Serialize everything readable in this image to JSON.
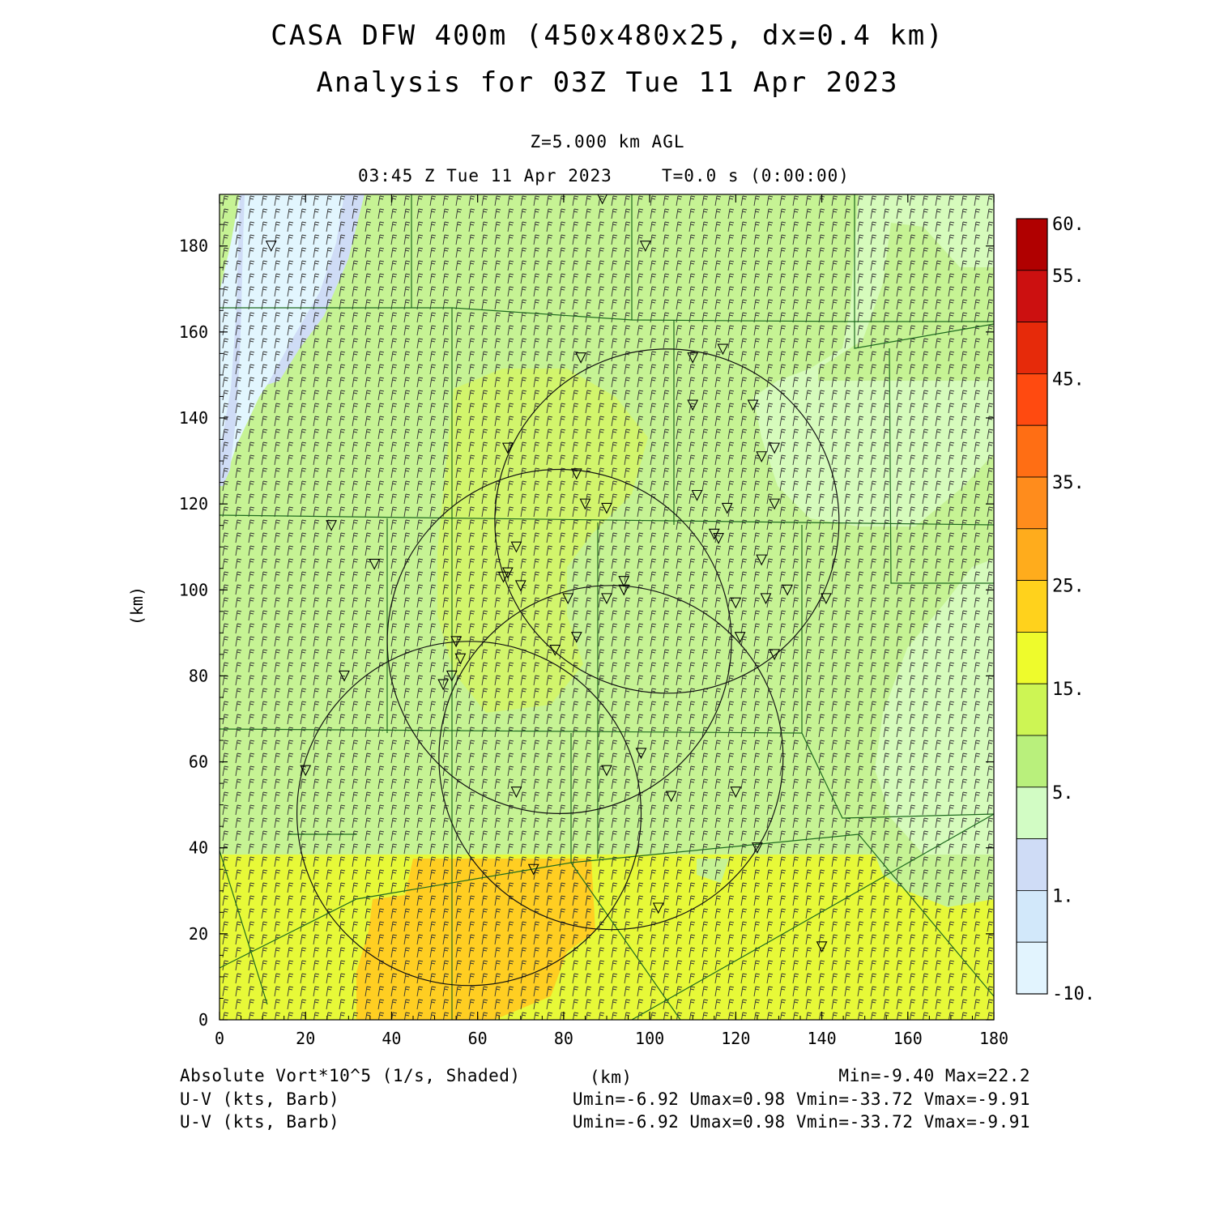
{
  "header": {
    "title_line1": "CASA DFW 400m (450x480x25, dx=0.4 km)",
    "title_line2": "Analysis for 03Z Tue 11 Apr 2023",
    "level": "Z=5.000 km AGL",
    "valid_time": "03:45 Z Tue 11 Apr 2023",
    "elapsed": "T=0.0 s (0:00:00)"
  },
  "axes": {
    "x_ticks": [
      "0",
      "20",
      "40",
      "60",
      "80",
      "100",
      "120",
      "140",
      "160",
      "180"
    ],
    "y_ticks": [
      "0",
      "20",
      "40",
      "60",
      "80",
      "100",
      "120",
      "140",
      "160",
      "180"
    ],
    "x_label": "(km)",
    "y_label": "(km)",
    "x_range_km": [
      0,
      180
    ],
    "y_range_km": [
      0,
      192
    ]
  },
  "colorbar": {
    "labels": [
      "60.",
      "55.",
      "45.",
      "35.",
      "25.",
      "15.",
      "5.",
      "1.",
      "-10."
    ],
    "colors": [
      "#b00000",
      "#cc1010",
      "#e62a0a",
      "#ff4a10",
      "#ff6e14",
      "#ff8c1c",
      "#ffac1c",
      "#ffd21c",
      "#eefb2c",
      "#cdf554",
      "#b9f07c",
      "#d2fcc4",
      "#cfdcf6",
      "#d2e8fa",
      "#e2f4fe"
    ]
  },
  "field_colors": {
    "background": "#c6f394",
    "light_green": "#d6fbbc",
    "pale_blue": "#e2f6fe",
    "blue": "#cfdcf6",
    "yellow_green": "#d2f56c",
    "yellow": "#e7f938",
    "orange": "#ffce22",
    "contour": "#1e6a1e"
  },
  "footer": {
    "shaded_label": "Absolute Vort*10^5 (1/s, Shaded)",
    "unit_label": "(km)",
    "minmax": "Min=-9.40 Max=22.2",
    "barb_label_1": "U-V (kts, Barb)",
    "barb_stats_1": "Umin=-6.92 Umax=0.98 Vmin=-33.72 Vmax=-9.91",
    "barb_label_2": "U-V (kts, Barb)",
    "barb_stats_2": "Umin=-6.92 Umax=0.98 Vmin=-33.72 Vmax=-9.91"
  },
  "radars_km": [
    {
      "x": 104,
      "y": 116,
      "r": 40
    },
    {
      "x": 79,
      "y": 88,
      "r": 40
    },
    {
      "x": 91,
      "y": 61,
      "r": 40
    },
    {
      "x": 58,
      "y": 48,
      "r": 40
    }
  ],
  "stations_km": [
    [
      12,
      180
    ],
    [
      89,
      191
    ],
    [
      99,
      180
    ],
    [
      26,
      115
    ],
    [
      36,
      106
    ],
    [
      29,
      80
    ],
    [
      20,
      58
    ],
    [
      84,
      154
    ],
    [
      110,
      154
    ],
    [
      117,
      156
    ],
    [
      110,
      143
    ],
    [
      124,
      143
    ],
    [
      67,
      133
    ],
    [
      126,
      131
    ],
    [
      129,
      133
    ],
    [
      83,
      127
    ],
    [
      85,
      120
    ],
    [
      90,
      119
    ],
    [
      111,
      122
    ],
    [
      118,
      119
    ],
    [
      129,
      120
    ],
    [
      69,
      110
    ],
    [
      115,
      113
    ],
    [
      116,
      112
    ],
    [
      126,
      107
    ],
    [
      67,
      104
    ],
    [
      66,
      103
    ],
    [
      70,
      101
    ],
    [
      94,
      102
    ],
    [
      94,
      100
    ],
    [
      90,
      98
    ],
    [
      81,
      98
    ],
    [
      120,
      97
    ],
    [
      127,
      98
    ],
    [
      132,
      100
    ],
    [
      141,
      98
    ],
    [
      55,
      88
    ],
    [
      56,
      84
    ],
    [
      54,
      80
    ],
    [
      52,
      78
    ],
    [
      78,
      86
    ],
    [
      83,
      89
    ],
    [
      121,
      89
    ],
    [
      129,
      85
    ],
    [
      98,
      62
    ],
    [
      90,
      58
    ],
    [
      69,
      53
    ],
    [
      105,
      52
    ],
    [
      120,
      53
    ],
    [
      125,
      40
    ],
    [
      73,
      35
    ],
    [
      102,
      26
    ],
    [
      140,
      17
    ]
  ]
}
